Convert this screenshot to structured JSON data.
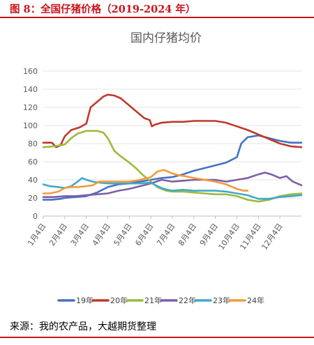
{
  "figure": {
    "caption": "图 8：全国仔猪价格（2019-2024 年）",
    "source": "来源：我的农产品，大越期货整理"
  },
  "colors": {
    "accent": "#c8151d",
    "grid": "#e3e3e3",
    "axis": "#bfbfbf",
    "text": "#595959"
  },
  "chart_data": {
    "type": "line",
    "title": "国内仔猪均价",
    "xlabel": "",
    "ylabel": "",
    "ylim": [
      0,
      160
    ],
    "yticks": [
      0,
      20,
      40,
      60,
      80,
      100,
      120,
      140,
      160
    ],
    "xlim": [
      0,
      12
    ],
    "xticks": [
      {
        "label": "1月4日",
        "x": 0
      },
      {
        "label": "2月4日",
        "x": 1
      },
      {
        "label": "3月4日",
        "x": 2
      },
      {
        "label": "4月4日",
        "x": 3
      },
      {
        "label": "5月4日",
        "x": 4
      },
      {
        "label": "6月4日",
        "x": 5
      },
      {
        "label": "7月4日",
        "x": 6
      },
      {
        "label": "8月4日",
        "x": 7
      },
      {
        "label": "9月4日",
        "x": 8
      },
      {
        "label": "10月4日",
        "x": 9
      },
      {
        "label": "11月4日",
        "x": 10
      },
      {
        "label": "12月4日",
        "x": 11
      }
    ],
    "grid": "horizontal",
    "legend_position": "bottom",
    "series": [
      {
        "name": "19年",
        "color": "#4472c4",
        "points": [
          [
            0,
            18
          ],
          [
            0.4,
            18
          ],
          [
            0.8,
            19
          ],
          [
            1,
            20
          ],
          [
            1.5,
            21
          ],
          [
            2,
            22
          ],
          [
            2.5,
            26
          ],
          [
            3,
            32
          ],
          [
            3.5,
            35
          ],
          [
            4,
            36
          ],
          [
            4.5,
            38
          ],
          [
            5,
            40
          ],
          [
            5.5,
            42
          ],
          [
            6,
            43
          ],
          [
            6.5,
            46
          ],
          [
            7,
            50
          ],
          [
            7.5,
            53
          ],
          [
            8,
            56
          ],
          [
            8.5,
            59
          ],
          [
            9,
            65
          ],
          [
            9.2,
            80
          ],
          [
            9.5,
            87
          ],
          [
            10,
            89
          ],
          [
            10.5,
            86
          ],
          [
            11,
            83
          ],
          [
            11.5,
            81
          ],
          [
            12,
            81
          ]
        ]
      },
      {
        "name": "20年",
        "color": "#c0392b",
        "points": [
          [
            0,
            81
          ],
          [
            0.4,
            81
          ],
          [
            0.6,
            76
          ],
          [
            0.8,
            78
          ],
          [
            1,
            88
          ],
          [
            1.3,
            95
          ],
          [
            1.7,
            98
          ],
          [
            2,
            102
          ],
          [
            2.2,
            120
          ],
          [
            2.5,
            126
          ],
          [
            2.8,
            132
          ],
          [
            3,
            134
          ],
          [
            3.3,
            133
          ],
          [
            3.6,
            130
          ],
          [
            4,
            122
          ],
          [
            4.3,
            116
          ],
          [
            4.7,
            108
          ],
          [
            4.95,
            106
          ],
          [
            5.05,
            99
          ],
          [
            5.2,
            101
          ],
          [
            5.5,
            103
          ],
          [
            6,
            104
          ],
          [
            6.5,
            104
          ],
          [
            7,
            105
          ],
          [
            7.5,
            105
          ],
          [
            8,
            105
          ],
          [
            8.5,
            103
          ],
          [
            9,
            99
          ],
          [
            9.5,
            95
          ],
          [
            10,
            90
          ],
          [
            10.5,
            85
          ],
          [
            11,
            80
          ],
          [
            11.5,
            77
          ],
          [
            12,
            76
          ]
        ]
      },
      {
        "name": "21年",
        "color": "#9bbb3b",
        "points": [
          [
            0,
            76
          ],
          [
            0.5,
            77
          ],
          [
            1,
            79
          ],
          [
            1.3,
            86
          ],
          [
            1.6,
            91
          ],
          [
            2,
            94
          ],
          [
            2.5,
            94
          ],
          [
            2.8,
            92
          ],
          [
            3,
            86
          ],
          [
            3.3,
            72
          ],
          [
            3.6,
            66
          ],
          [
            4,
            59
          ],
          [
            4.3,
            53
          ],
          [
            4.6,
            46
          ],
          [
            5,
            38
          ],
          [
            5.3,
            32
          ],
          [
            5.7,
            28
          ],
          [
            6,
            27
          ],
          [
            6.5,
            27
          ],
          [
            7,
            26
          ],
          [
            7.5,
            25
          ],
          [
            8,
            24
          ],
          [
            8.5,
            24
          ],
          [
            9,
            22
          ],
          [
            9.5,
            18
          ],
          [
            10,
            16
          ],
          [
            10.5,
            18
          ],
          [
            11,
            22
          ],
          [
            11.5,
            24
          ],
          [
            12,
            25
          ]
        ]
      },
      {
        "name": "22年",
        "color": "#7d5fa7",
        "points": [
          [
            0,
            21
          ],
          [
            0.5,
            21
          ],
          [
            1,
            22
          ],
          [
            1.5,
            22
          ],
          [
            2,
            23
          ],
          [
            2.5,
            24
          ],
          [
            3,
            25
          ],
          [
            3.5,
            28
          ],
          [
            4,
            30
          ],
          [
            4.5,
            33
          ],
          [
            5,
            36
          ],
          [
            5.5,
            40
          ],
          [
            6,
            38
          ],
          [
            6.5,
            39
          ],
          [
            7,
            40
          ],
          [
            7.5,
            40
          ],
          [
            8,
            40
          ],
          [
            8.5,
            38
          ],
          [
            9,
            40
          ],
          [
            9.5,
            42
          ],
          [
            10,
            46
          ],
          [
            10.3,
            48
          ],
          [
            10.6,
            46
          ],
          [
            11,
            42
          ],
          [
            11.3,
            44
          ],
          [
            11.6,
            38
          ],
          [
            12,
            34
          ]
        ]
      },
      {
        "name": "23年",
        "color": "#41a9c8",
        "points": [
          [
            0,
            35
          ],
          [
            0.3,
            33
          ],
          [
            0.7,
            32
          ],
          [
            1,
            31
          ],
          [
            1.3,
            33
          ],
          [
            1.6,
            38
          ],
          [
            1.8,
            42
          ],
          [
            2,
            40
          ],
          [
            2.3,
            38
          ],
          [
            2.6,
            37
          ],
          [
            3,
            36
          ],
          [
            3.5,
            36
          ],
          [
            4,
            36
          ],
          [
            4.5,
            36
          ],
          [
            5,
            37
          ],
          [
            5.3,
            33
          ],
          [
            5.6,
            30
          ],
          [
            6,
            28
          ],
          [
            6.5,
            29
          ],
          [
            7,
            28
          ],
          [
            7.5,
            28
          ],
          [
            8,
            28
          ],
          [
            8.5,
            27
          ],
          [
            9,
            25
          ],
          [
            9.5,
            23
          ],
          [
            10,
            19
          ],
          [
            10.5,
            19
          ],
          [
            11,
            21
          ],
          [
            11.5,
            22
          ],
          [
            12,
            23
          ]
        ]
      },
      {
        "name": "24年",
        "color": "#f39a3b",
        "points": [
          [
            0,
            25
          ],
          [
            0.3,
            25
          ],
          [
            0.7,
            27
          ],
          [
            1,
            31
          ],
          [
            1.3,
            32
          ],
          [
            1.6,
            32
          ],
          [
            2,
            33
          ],
          [
            2.3,
            34
          ],
          [
            2.6,
            38
          ],
          [
            3,
            38
          ],
          [
            3.5,
            38
          ],
          [
            4,
            38
          ],
          [
            4.5,
            40
          ],
          [
            5,
            43
          ],
          [
            5.3,
            49
          ],
          [
            5.6,
            51
          ],
          [
            6,
            47
          ],
          [
            6.3,
            45
          ],
          [
            6.6,
            44
          ],
          [
            7,
            42
          ],
          [
            7.5,
            40
          ],
          [
            8,
            38
          ],
          [
            8.5,
            35
          ],
          [
            9,
            30
          ],
          [
            9.3,
            28
          ],
          [
            9.5,
            28
          ]
        ]
      }
    ]
  }
}
